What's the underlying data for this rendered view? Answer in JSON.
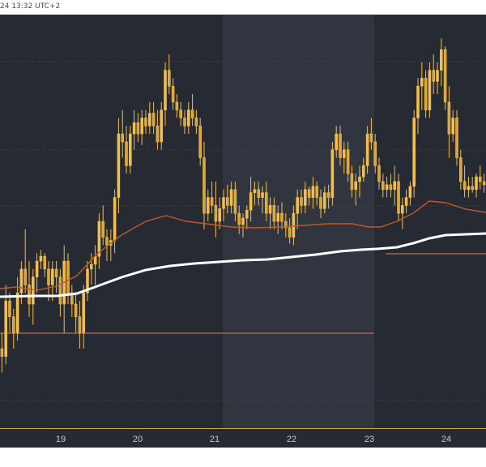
{
  "header": {
    "timestamp": "24 13:32 UTC+2"
  },
  "chart_data": {
    "type": "candlestick",
    "x_tick_labels": [
      "19",
      "20",
      "21",
      "22",
      "23",
      "24"
    ],
    "colors": {
      "background": "#262a33",
      "session_band": "#31353f",
      "candle": "#f5be4b",
      "ma_fast": "#c25a28",
      "ma_slow": "#ffffff",
      "hline": "#b8705a",
      "axis_text": "#c8c8c8"
    },
    "ohlc": [
      [
        290,
        300,
        275,
        285
      ],
      [
        285,
        330,
        280,
        320
      ],
      [
        320,
        325,
        300,
        310
      ],
      [
        310,
        315,
        290,
        300
      ],
      [
        300,
        335,
        295,
        325
      ],
      [
        325,
        345,
        318,
        340
      ],
      [
        340,
        365,
        325,
        330
      ],
      [
        330,
        345,
        310,
        318
      ],
      [
        318,
        340,
        305,
        335
      ],
      [
        335,
        350,
        325,
        345
      ],
      [
        345,
        352,
        340,
        348
      ],
      [
        348,
        350,
        335,
        340
      ],
      [
        340,
        345,
        320,
        330
      ],
      [
        330,
        345,
        320,
        340
      ],
      [
        340,
        345,
        325,
        335
      ],
      [
        335,
        340,
        310,
        318
      ],
      [
        318,
        355,
        300,
        345
      ],
      [
        345,
        350,
        318,
        325
      ],
      [
        325,
        330,
        310,
        318
      ],
      [
        318,
        325,
        300,
        310
      ],
      [
        310,
        320,
        290,
        300
      ],
      [
        300,
        330,
        290,
        325
      ],
      [
        325,
        345,
        320,
        340
      ],
      [
        340,
        350,
        330,
        343
      ],
      [
        343,
        355,
        330,
        348
      ],
      [
        348,
        375,
        340,
        370
      ],
      [
        370,
        380,
        355,
        360
      ],
      [
        360,
        365,
        345,
        355
      ],
      [
        355,
        365,
        345,
        358
      ],
      [
        358,
        390,
        350,
        385
      ],
      [
        385,
        435,
        375,
        425
      ],
      [
        425,
        440,
        410,
        420
      ],
      [
        420,
        430,
        400,
        405
      ],
      [
        405,
        430,
        400,
        425
      ],
      [
        425,
        440,
        415,
        432
      ],
      [
        432,
        438,
        420,
        425
      ],
      [
        425,
        440,
        418,
        435
      ],
      [
        435,
        440,
        425,
        430
      ],
      [
        430,
        445,
        425,
        438
      ],
      [
        438,
        445,
        425,
        430
      ],
      [
        430,
        440,
        415,
        420
      ],
      [
        420,
        445,
        415,
        440
      ],
      [
        440,
        470,
        430,
        465
      ],
      [
        465,
        475,
        450,
        455
      ],
      [
        455,
        460,
        440,
        445
      ],
      [
        445,
        450,
        435,
        440
      ],
      [
        440,
        445,
        430,
        435
      ],
      [
        435,
        440,
        425,
        430
      ],
      [
        430,
        445,
        425,
        440
      ],
      [
        440,
        450,
        430,
        435
      ],
      [
        435,
        440,
        425,
        430
      ],
      [
        430,
        435,
        405,
        410
      ],
      [
        410,
        420,
        365,
        375
      ],
      [
        375,
        390,
        370,
        385
      ],
      [
        385,
        395,
        375,
        380
      ],
      [
        380,
        395,
        360,
        370
      ],
      [
        370,
        385,
        365,
        378
      ],
      [
        378,
        390,
        370,
        385
      ],
      [
        385,
        393,
        375,
        380
      ],
      [
        380,
        395,
        375,
        390
      ],
      [
        390,
        395,
        370,
        375
      ],
      [
        375,
        380,
        362,
        368
      ],
      [
        368,
        375,
        360,
        372
      ],
      [
        372,
        380,
        365,
        377
      ],
      [
        377,
        398,
        370,
        388
      ],
      [
        388,
        395,
        380,
        390
      ],
      [
        390,
        395,
        380,
        385
      ],
      [
        385,
        392,
        375,
        388
      ],
      [
        388,
        395,
        370,
        375
      ],
      [
        375,
        385,
        365,
        380
      ],
      [
        380,
        385,
        365,
        370
      ],
      [
        370,
        380,
        362,
        375
      ],
      [
        375,
        382,
        365,
        370
      ],
      [
        370,
        375,
        360,
        366
      ],
      [
        366,
        372,
        356,
        360
      ],
      [
        360,
        380,
        355,
        375
      ],
      [
        375,
        390,
        365,
        385
      ],
      [
        385,
        390,
        375,
        380
      ],
      [
        380,
        395,
        375,
        390
      ],
      [
        390,
        392,
        380,
        385
      ],
      [
        385,
        398,
        378,
        392
      ],
      [
        392,
        395,
        380,
        385
      ],
      [
        385,
        390,
        372,
        378
      ],
      [
        378,
        392,
        375,
        388
      ],
      [
        388,
        393,
        378,
        385
      ],
      [
        385,
        420,
        380,
        415
      ],
      [
        415,
        430,
        410,
        425
      ],
      [
        425,
        430,
        405,
        410
      ],
      [
        410,
        420,
        400,
        415
      ],
      [
        415,
        420,
        395,
        400
      ],
      [
        400,
        405,
        385,
        390
      ],
      [
        390,
        400,
        380,
        395
      ],
      [
        395,
        405,
        385,
        398
      ],
      [
        398,
        410,
        395,
        405
      ],
      [
        405,
        430,
        400,
        425
      ],
      [
        425,
        435,
        415,
        420
      ],
      [
        420,
        425,
        400,
        405
      ],
      [
        405,
        410,
        390,
        395
      ],
      [
        395,
        400,
        385,
        390
      ],
      [
        390,
        398,
        385,
        393
      ],
      [
        393,
        400,
        385,
        390
      ],
      [
        390,
        405,
        380,
        395
      ],
      [
        395,
        400,
        370,
        375
      ],
      [
        375,
        385,
        365,
        380
      ],
      [
        380,
        390,
        375,
        385
      ],
      [
        385,
        395,
        380,
        392
      ],
      [
        392,
        440,
        385,
        435
      ],
      [
        435,
        460,
        425,
        455
      ],
      [
        455,
        470,
        440,
        460
      ],
      [
        460,
        465,
        435,
        440
      ],
      [
        440,
        470,
        435,
        465
      ],
      [
        465,
        475,
        450,
        458
      ],
      [
        458,
        470,
        450,
        465
      ],
      [
        465,
        485,
        455,
        478
      ],
      [
        478,
        480,
        440,
        445
      ],
      [
        445,
        455,
        410,
        425
      ],
      [
        425,
        440,
        420,
        435
      ],
      [
        435,
        440,
        405,
        410
      ],
      [
        410,
        415,
        390,
        395
      ],
      [
        395,
        405,
        385,
        390
      ],
      [
        390,
        398,
        385,
        392
      ],
      [
        392,
        398,
        388,
        390
      ],
      [
        390,
        400,
        385,
        398
      ],
      [
        398,
        405,
        390,
        395
      ],
      [
        395,
        400,
        388,
        393
      ]
    ],
    "ma_fast": [
      [
        0,
        338
      ],
      [
        20,
        336
      ],
      [
        45,
        340
      ],
      [
        70,
        335
      ],
      [
        95,
        322
      ],
      [
        120,
        295
      ],
      [
        150,
        272
      ],
      [
        180,
        255
      ],
      [
        205,
        248
      ],
      [
        230,
        255
      ],
      [
        255,
        258
      ],
      [
        285,
        262
      ],
      [
        315,
        263
      ],
      [
        345,
        262
      ],
      [
        375,
        260
      ],
      [
        405,
        258
      ],
      [
        435,
        258
      ],
      [
        455,
        262
      ],
      [
        470,
        262
      ],
      [
        490,
        255
      ],
      [
        510,
        245
      ],
      [
        530,
        230
      ],
      [
        550,
        232
      ],
      [
        575,
        240
      ],
      [
        600,
        244
      ]
    ],
    "ma_slow": [
      [
        0,
        348
      ],
      [
        40,
        347
      ],
      [
        70,
        347
      ],
      [
        95,
        344
      ],
      [
        120,
        335
      ],
      [
        150,
        324
      ],
      [
        180,
        315
      ],
      [
        210,
        310
      ],
      [
        240,
        307
      ],
      [
        270,
        305
      ],
      [
        300,
        303
      ],
      [
        330,
        302
      ],
      [
        360,
        299
      ],
      [
        390,
        296
      ],
      [
        420,
        292
      ],
      [
        445,
        290
      ],
      [
        465,
        289
      ],
      [
        490,
        287
      ],
      [
        510,
        282
      ],
      [
        530,
        276
      ],
      [
        550,
        272
      ],
      [
        575,
        271
      ],
      [
        600,
        270
      ]
    ],
    "hlines": [
      {
        "y": 393,
        "x1": 0,
        "x2": 462
      },
      {
        "y": 295,
        "x1": 476,
        "x2": 600
      }
    ],
    "session_bands": [
      [
        275,
        462
      ]
    ],
    "ylim": [
      240,
      500
    ]
  }
}
